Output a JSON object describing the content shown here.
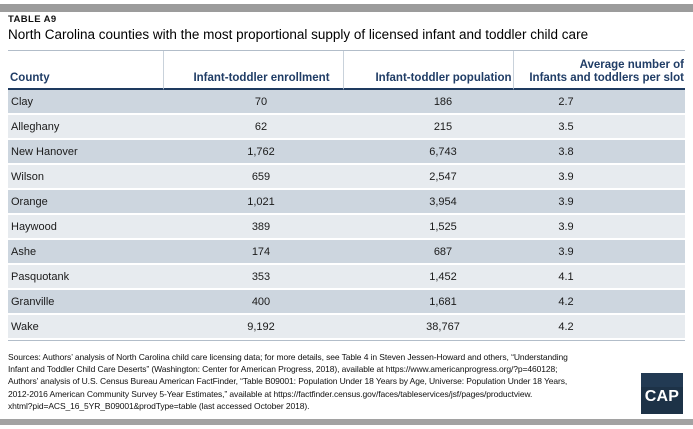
{
  "page": {
    "table_label": "TABLE A9",
    "title": "North Carolina counties with the most proportional supply of licensed infant and toddler child care",
    "logo_text": "CAP",
    "sources_lines": [
      "Sources: Authors’ analysis of North Carolina child care licensing data; for more details, see Table 4 in Steven Jessen-Howard and others, “Understanding",
      "Infant and Toddler Child Care Deserts” (Washington: Center for American Progress, 2018), available at https://www.americanprogress.org/?p=460128;",
      "Authors’ analysis of U.S. Census Bureau American FactFinder, “Table B09001: Population Under 18 Years by Age, Universe: Population Under 18 Years,",
      "2012-2016 American Community Survey 5-Year Estimates,” available at https://factfinder.census.gov/faces/tableservices/jsf/pages/productview.",
      "xhtml?pid=ACS_16_5YR_B09001&prodType=table (last accessed October 2018)."
    ]
  },
  "table": {
    "headers": {
      "county": "County",
      "enrollment": "Infant-toddler enrollment",
      "population": "Infant-toddler population",
      "avg_line1": "Average number of",
      "avg_line2": "Infants and toddlers per slot"
    }
  },
  "chart_data": {
    "type": "table",
    "title": "North Carolina counties with the most proportional supply of licensed infant and toddler child care",
    "columns": [
      "County",
      "Infant-toddler enrollment",
      "Infant-toddler population",
      "Average number of Infants and toddlers per slot"
    ],
    "rows": [
      [
        "Clay",
        "70",
        "186",
        "2.7"
      ],
      [
        "Alleghany",
        "62",
        "215",
        "3.5"
      ],
      [
        "New Hanover",
        "1,762",
        "6,743",
        "3.8"
      ],
      [
        "Wilson",
        "659",
        "2,547",
        "3.9"
      ],
      [
        "Orange",
        "1,021",
        "3,954",
        "3.9"
      ],
      [
        "Haywood",
        "389",
        "1,525",
        "3.9"
      ],
      [
        "Ashe",
        "174",
        "687",
        "3.9"
      ],
      [
        "Pasquotank",
        "353",
        "1,452",
        "4.1"
      ],
      [
        "Granville",
        "400",
        "1,681",
        "4.2"
      ],
      [
        "Wake",
        "9,192",
        "38,767",
        "4.2"
      ]
    ]
  },
  "colors": {
    "header_text": "#203d66",
    "header_rule": "#1e3a5f",
    "row_dark": "#cdd6df",
    "row_light": "#e7ebef",
    "rule_light": "#b2bdc9",
    "bar_gray": "#9c9c9c",
    "logo_bg": "#1d3247"
  }
}
